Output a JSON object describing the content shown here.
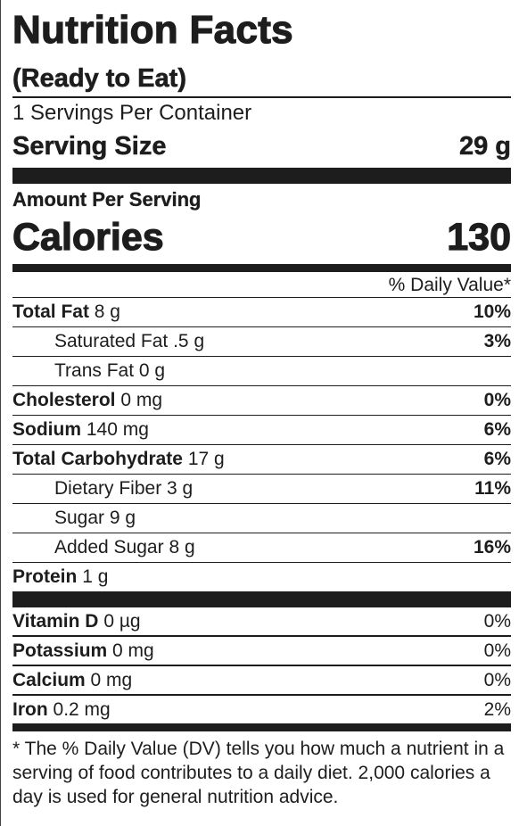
{
  "title": "Nutrition Facts",
  "subtitle": "(Ready to Eat)",
  "servings_per_container": "1 Servings Per Container",
  "serving_size": {
    "label": "Serving Size",
    "value": "29 g"
  },
  "amount_per_serving": "Amount Per Serving",
  "calories": {
    "label": "Calories",
    "value": "130"
  },
  "daily_value_header": "% Daily Value*",
  "nutrients": [
    {
      "name": "Total Fat",
      "amount": "8 g",
      "dv": "10%"
    },
    {
      "name": "Saturated Fat",
      "amount": ".5 g",
      "dv": "3%"
    },
    {
      "name": "Trans Fat",
      "amount": "0 g",
      "dv": ""
    },
    {
      "name": "Cholesterol",
      "amount": "0 mg",
      "dv": "0%"
    },
    {
      "name": "Sodium",
      "amount": "140 mg",
      "dv": "6%"
    },
    {
      "name": "Total Carbohydrate",
      "amount": "17 g",
      "dv": "6%"
    },
    {
      "name": "Dietary Fiber",
      "amount": "3 g",
      "dv": "11%"
    },
    {
      "name": "Sugar",
      "amount": "9 g",
      "dv": ""
    },
    {
      "name": "Added Sugar",
      "amount": "8 g",
      "dv": "16%"
    },
    {
      "name": "Protein",
      "amount": "1 g",
      "dv": ""
    }
  ],
  "vitamins": [
    {
      "name": "Vitamin D",
      "amount": "0 µg",
      "dv": "0%"
    },
    {
      "name": "Potassium",
      "amount": "0 mg",
      "dv": "0%"
    },
    {
      "name": "Calcium",
      "amount": "0 mg",
      "dv": "0%"
    },
    {
      "name": "Iron",
      "amount": "0.2 mg",
      "dv": "2%"
    }
  ],
  "footnote": "* The % Daily Value (DV) tells you how much a nutrient in a serving of food contributes to a daily diet. 2,000 calories a day is used for general nutrition advice."
}
